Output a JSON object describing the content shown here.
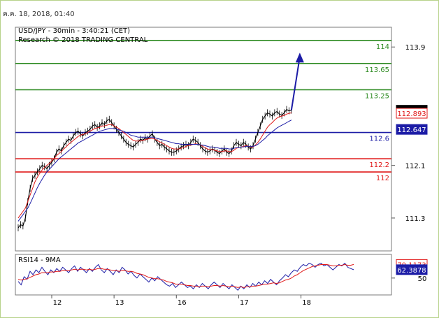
{
  "timestamp": "ค.ค. 18, 2018, 01:40",
  "chart_data": [
    {
      "type": "line",
      "title": "USD/JPY - 30min - 3:40:21 (CET)",
      "subtitle": "Research © 2018 TRADING CENTRAL",
      "ylim": [
        110.8,
        114.2
      ],
      "yticks": [
        "113.9",
        "112.1",
        "111.3"
      ],
      "ytick_values": [
        113.9,
        112.1,
        111.3
      ],
      "x_ticks": [
        "12",
        "13",
        "16",
        "17",
        "18"
      ],
      "x_tick_index": [
        14,
        40,
        66,
        92,
        118
      ],
      "x_range": [
        0,
        140
      ],
      "grid": false,
      "levels": [
        {
          "label": "114",
          "value": 114.0,
          "color": "#2e8b22"
        },
        {
          "label": "113.65",
          "value": 113.65,
          "color": "#2e8b22"
        },
        {
          "label": "113.25",
          "value": 113.25,
          "color": "#2e8b22"
        },
        {
          "label": "112.6",
          "value": 112.6,
          "color": "#1c1ca6"
        },
        {
          "label": "112.2",
          "value": 112.2,
          "color": "#e01818"
        },
        {
          "label": "112",
          "value": 112.0,
          "color": "#e01818"
        }
      ],
      "price_tags": [
        {
          "label": "112.939",
          "value": 112.939,
          "bg": "#000000",
          "fg": "#ffffff"
        },
        {
          "label": "112.893",
          "value": 112.893,
          "bg": "#ffffff",
          "fg": "#e01818"
        },
        {
          "label": "112.647",
          "value": 112.647,
          "bg": "#1c1ca6",
          "fg": "#ffffff"
        }
      ],
      "series": [
        {
          "role": "price",
          "color": "#000000",
          "values": [
            111.15,
            111.2,
            111.18,
            111.3,
            111.55,
            111.75,
            111.9,
            111.95,
            112.0,
            112.05,
            112.1,
            112.08,
            112.05,
            112.1,
            112.15,
            112.2,
            112.3,
            112.35,
            112.32,
            112.4,
            112.45,
            112.5,
            112.48,
            112.55,
            112.6,
            112.62,
            112.58,
            112.55,
            112.6,
            112.62,
            112.65,
            112.7,
            112.72,
            112.68,
            112.7,
            112.75,
            112.72,
            112.78,
            112.8,
            112.75,
            112.7,
            112.65,
            112.6,
            112.55,
            112.5,
            112.45,
            112.42,
            112.4,
            112.38,
            112.42,
            112.45,
            112.5,
            112.48,
            112.52,
            112.5,
            112.55,
            112.58,
            112.5,
            112.45,
            112.4,
            112.42,
            112.38,
            112.35,
            112.32,
            112.3,
            112.3,
            112.32,
            112.35,
            112.38,
            112.4,
            112.42,
            112.4,
            112.45,
            112.5,
            112.48,
            112.45,
            112.4,
            112.35,
            112.32,
            112.3,
            112.32,
            112.35,
            112.33,
            112.3,
            112.28,
            112.32,
            112.35,
            112.3,
            112.28,
            112.32,
            112.4,
            112.45,
            112.42,
            112.4,
            112.45,
            112.42,
            112.38,
            112.35,
            112.4,
            112.5,
            112.6,
            112.7,
            112.8,
            112.85,
            112.9,
            112.88,
            112.85,
            112.9,
            112.92,
            112.88,
            112.86,
            112.9,
            112.95,
            112.93,
            112.939
          ]
        },
        {
          "role": "moving-average",
          "color": "#e01818",
          "values": [
            111.3,
            111.35,
            111.4,
            111.45,
            111.55,
            111.65,
            111.75,
            111.85,
            111.92,
            111.98,
            112.03,
            112.07,
            112.1,
            112.13,
            112.17,
            112.2,
            112.25,
            112.28,
            112.31,
            112.35,
            112.38,
            112.42,
            112.45,
            112.48,
            112.51,
            112.54,
            112.56,
            112.57,
            112.58,
            112.6,
            112.62,
            112.64,
            112.66,
            112.67,
            112.68,
            112.7,
            112.7,
            112.71,
            112.72,
            112.72,
            112.7,
            112.68,
            112.66,
            112.63,
            112.6,
            112.57,
            112.54,
            112.51,
            112.48,
            112.47,
            112.47,
            112.47,
            112.48,
            112.49,
            112.5,
            112.51,
            112.51,
            112.5,
            112.48,
            112.46,
            112.44,
            112.42,
            112.4,
            112.38,
            112.36,
            112.35,
            112.35,
            112.35,
            112.36,
            112.37,
            112.39,
            112.4,
            112.41,
            112.42,
            112.43,
            112.42,
            112.41,
            112.39,
            112.37,
            112.35,
            112.34,
            112.34,
            112.33,
            112.32,
            112.31,
            112.31,
            112.32,
            112.32,
            112.31,
            112.31,
            112.33,
            112.36,
            112.37,
            112.38,
            112.39,
            112.4,
            112.39,
            112.38,
            112.38,
            112.41,
            112.45,
            112.5,
            112.56,
            112.62,
            112.68,
            112.72,
            112.75,
            112.79,
            112.82,
            112.84,
            112.85,
            112.86,
            112.88,
            112.89,
            112.9
          ]
        },
        {
          "role": "moving-average",
          "color": "#1c1ca6",
          "values": [
            111.25,
            111.3,
            111.35,
            111.4,
            111.45,
            111.52,
            111.6,
            111.68,
            111.76,
            111.83,
            111.89,
            111.95,
            112.0,
            112.04,
            112.08,
            112.12,
            112.16,
            112.2,
            112.23,
            112.26,
            112.29,
            112.32,
            112.35,
            112.38,
            112.41,
            112.44,
            112.46,
            112.48,
            112.5,
            112.52,
            112.54,
            112.56,
            112.58,
            112.6,
            112.62,
            112.63,
            112.64,
            112.65,
            112.66,
            112.66,
            112.66,
            112.65,
            112.64,
            112.63,
            112.62,
            112.6,
            112.58,
            112.56,
            112.55,
            112.54,
            112.53,
            112.53,
            112.53,
            112.53,
            112.53,
            112.53,
            112.53,
            112.52,
            112.51,
            112.5,
            112.49,
            112.48,
            112.47,
            112.46,
            112.45,
            112.44,
            112.43,
            112.43,
            112.42,
            112.42,
            112.42,
            112.42,
            112.42,
            112.42,
            112.42,
            112.42,
            112.41,
            112.41,
            112.4,
            112.39,
            112.38,
            112.38,
            112.37,
            112.37,
            112.36,
            112.36,
            112.36,
            112.36,
            112.35,
            112.35,
            112.36,
            112.37,
            112.37,
            112.38,
            112.38,
            112.39,
            112.39,
            112.39,
            112.39,
            112.4,
            112.42,
            112.45,
            112.48,
            112.51,
            112.55,
            112.58,
            112.61,
            112.64,
            112.67,
            112.69,
            112.71,
            112.73,
            112.75,
            112.77,
            112.79
          ]
        }
      ],
      "projection": {
        "from_value": 112.939,
        "to_value": 113.75,
        "color": "#1c1ca6"
      }
    },
    {
      "type": "line",
      "title": "RSI14 - 9MA",
      "ylim": [
        25,
        85
      ],
      "yticks": [
        "50"
      ],
      "ytick_values": [
        50
      ],
      "price_tags": [
        {
          "label": "70.1173",
          "value": 70.1173,
          "bg": "#ffffff",
          "fg": "#e01818"
        },
        {
          "label": "62.3878",
          "value": 62.3878,
          "bg": "#1c1ca6",
          "fg": "#ffffff"
        }
      ],
      "series": [
        {
          "role": "rsi",
          "color": "#1c1ca6",
          "values": [
            45,
            40,
            52,
            48,
            60,
            55,
            62,
            58,
            66,
            60,
            55,
            62,
            58,
            64,
            60,
            66,
            62,
            58,
            64,
            68,
            60,
            66,
            62,
            58,
            64,
            60,
            66,
            70,
            62,
            58,
            64,
            60,
            55,
            62,
            58,
            66,
            62,
            56,
            60,
            54,
            50,
            56,
            52,
            48,
            44,
            50,
            46,
            52,
            48,
            44,
            40,
            38,
            42,
            36,
            40,
            44,
            40,
            36,
            38,
            34,
            40,
            36,
            42,
            38,
            34,
            40,
            44,
            40,
            36,
            42,
            38,
            34,
            40,
            36,
            32,
            38,
            34,
            40,
            36,
            42,
            38,
            44,
            40,
            46,
            42,
            48,
            44,
            40,
            46,
            50,
            55,
            52,
            58,
            62,
            60,
            66,
            70,
            68,
            72,
            70,
            66,
            70,
            72,
            68,
            70,
            66,
            62,
            66,
            70,
            68,
            72,
            66,
            64,
            62.3878
          ]
        },
        {
          "role": "ma",
          "color": "#e01818",
          "values": [
            48,
            47,
            48,
            49,
            51,
            53,
            55,
            56,
            58,
            58,
            58,
            59,
            59,
            60,
            60,
            61,
            61,
            61,
            62,
            63,
            62,
            63,
            63,
            62,
            63,
            62,
            63,
            64,
            64,
            63,
            63,
            62,
            61,
            61,
            60,
            61,
            61,
            60,
            60,
            59,
            57,
            56,
            55,
            53,
            51,
            50,
            49,
            49,
            48,
            47,
            45,
            44,
            43,
            41,
            41,
            41,
            40,
            39,
            39,
            38,
            38,
            37,
            38,
            38,
            37,
            38,
            39,
            39,
            38,
            39,
            38,
            37,
            38,
            37,
            36,
            37,
            36,
            37,
            37,
            38,
            38,
            39,
            40,
            41,
            41,
            42,
            43,
            42,
            43,
            45,
            47,
            48,
            50,
            53,
            55,
            58,
            61,
            63,
            65,
            67,
            68,
            69,
            70,
            70,
            70,
            69,
            68,
            68,
            69,
            69,
            70,
            69,
            69,
            70.1173
          ]
        }
      ]
    }
  ]
}
